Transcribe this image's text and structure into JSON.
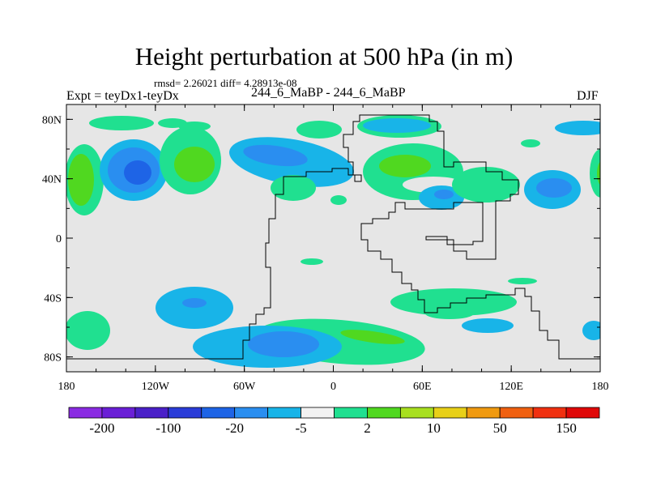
{
  "title": "Height perturbation at 500 hPa (in m)",
  "stats": "rmsd= 2.26021 diff= 4.28913e-08",
  "left_title": "Expt = teyDx1-teyDx",
  "center_title": "244_6_MaBP - 244_6_MaBP",
  "right_title": "DJF",
  "map": {
    "projection": "cylindrical-equidistant",
    "lon_range": [
      -180,
      180
    ],
    "lat_range": [
      -90,
      90
    ],
    "background_color": "#e6e6e6",
    "lat_ticks": [
      {
        "value": 80,
        "label": "80N"
      },
      {
        "value": 40,
        "label": "40N"
      },
      {
        "value": 0,
        "label": "0"
      },
      {
        "value": -40,
        "label": "40S"
      },
      {
        "value": -80,
        "label": "80S"
      }
    ],
    "lon_ticks": [
      {
        "value": -180,
        "label": "180"
      },
      {
        "value": -120,
        "label": "120W"
      },
      {
        "value": -60,
        "label": "60W"
      },
      {
        "value": 0,
        "label": "0"
      },
      {
        "value": 60,
        "label": "60E"
      },
      {
        "value": 120,
        "label": "120E"
      },
      {
        "value": 180,
        "label": "180"
      }
    ]
  },
  "colorbar": {
    "colors": [
      "#8a2be2",
      "#6a1fd6",
      "#4a20c8",
      "#2a3cd8",
      "#1e64e6",
      "#2a8ef0",
      "#18b4e8",
      "#f2f2f2",
      "#20e090",
      "#50d820",
      "#a8e020",
      "#e8d018",
      "#f09a10",
      "#f06010",
      "#f03010",
      "#e00808"
    ],
    "labels": [
      "-200",
      "-100",
      "-20",
      "-5",
      "2",
      "10",
      "50",
      "150"
    ]
  }
}
